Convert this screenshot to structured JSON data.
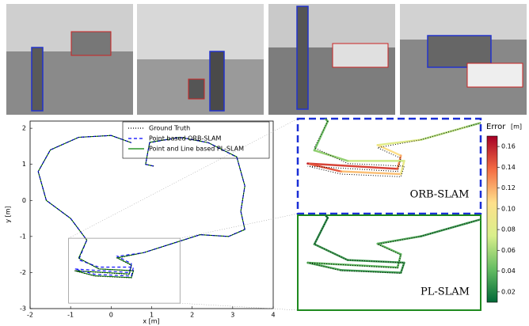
{
  "chart_data": {
    "type": "line",
    "x_label": "x [m]",
    "y_label": "y [m]",
    "xlim": [
      -2,
      4
    ],
    "ylim": [
      -3,
      2.2
    ],
    "xticks": [
      -2,
      -1,
      0,
      1,
      2,
      3,
      4
    ],
    "yticks": [
      -3,
      -2,
      -1,
      0,
      1,
      2
    ],
    "x": [
      1.05,
      0.85,
      0.95,
      1.7,
      2.4,
      3.1,
      3.3,
      3.2,
      3.3,
      2.9,
      2.2,
      1.5,
      0.8,
      0.15,
      0.5,
      0.45,
      -0.9,
      -0.4,
      0.5,
      0.55,
      -0.3,
      -0.8,
      -0.6,
      -1.0,
      -1.6,
      -1.8,
      -1.5,
      -0.8,
      0.0,
      0.5
    ],
    "series": [
      {
        "name": "Ground Truth",
        "color": "#000000",
        "style": "dotted",
        "values": [
          0.95,
          1.0,
          1.6,
          1.75,
          1.6,
          1.2,
          0.4,
          -0.3,
          -0.8,
          -1.0,
          -0.95,
          -1.2,
          -1.45,
          -1.6,
          -1.8,
          -2.05,
          -1.95,
          -2.1,
          -2.15,
          -1.95,
          -1.9,
          -1.6,
          -1.1,
          -0.5,
          0.0,
          0.8,
          1.4,
          1.75,
          1.8,
          1.6
        ]
      },
      {
        "name": "Point based ORB-SLAM",
        "color": "#0000ff",
        "style": "dashed",
        "values": [
          0.95,
          1.0,
          1.6,
          1.75,
          1.6,
          1.2,
          0.4,
          -0.3,
          -0.8,
          -1.0,
          -0.95,
          -1.2,
          -1.45,
          -1.55,
          -1.75,
          -2.0,
          -1.9,
          -2.05,
          -2.1,
          -1.85,
          -1.85,
          -1.65,
          -1.1,
          -0.5,
          0.0,
          0.8,
          1.4,
          1.75,
          1.8,
          1.6
        ],
        "errors": [
          0.03,
          0.03,
          0.03,
          0.04,
          0.04,
          0.04,
          0.04,
          0.05,
          0.05,
          0.05,
          0.05,
          0.06,
          0.07,
          0.09,
          0.12,
          0.14,
          0.16,
          0.13,
          0.1,
          0.08,
          0.06,
          0.05,
          0.04,
          0.04,
          0.03,
          0.03,
          0.03,
          0.03,
          0.03,
          0.03
        ]
      },
      {
        "name": "Point and Line based PL-SLAM",
        "color": "#008000",
        "style": "solid",
        "values": [
          0.95,
          1.0,
          1.61,
          1.75,
          1.6,
          1.21,
          0.4,
          -0.3,
          -0.81,
          -1.0,
          -0.95,
          -1.2,
          -1.45,
          -1.59,
          -1.79,
          -2.04,
          -1.95,
          -2.09,
          -2.14,
          -1.95,
          -1.9,
          -1.6,
          -1.1,
          -0.5,
          0.0,
          0.8,
          1.4,
          1.75,
          1.8,
          1.6
        ],
        "errors": [
          0.02,
          0.02,
          0.02,
          0.03,
          0.03,
          0.03,
          0.03,
          0.03,
          0.03,
          0.03,
          0.03,
          0.03,
          0.03,
          0.04,
          0.04,
          0.04,
          0.04,
          0.03,
          0.03,
          0.03,
          0.03,
          0.03,
          0.02,
          0.02,
          0.02,
          0.02,
          0.02,
          0.02,
          0.02,
          0.02
        ]
      }
    ],
    "zoom": {
      "xlim": [
        -1.05,
        1.7
      ],
      "ylim": [
        -2.85,
        -1.05
      ]
    },
    "inset_labels": [
      "ORB-SLAM",
      "PL-SLAM"
    ],
    "colorbar": {
      "title": "Error",
      "unit": "[m]",
      "clim": [
        0.01,
        0.17
      ],
      "ticks": [
        0.02,
        0.04,
        0.06,
        0.08,
        {
          "value": 0.1,
          "label": "0.10"
        },
        0.12,
        0.14,
        0.16
      ],
      "colors": [
        "#006837",
        "#66bd63",
        "#d9ef8b",
        "#fee08b",
        "#f46d43",
        "#a50026"
      ]
    }
  }
}
